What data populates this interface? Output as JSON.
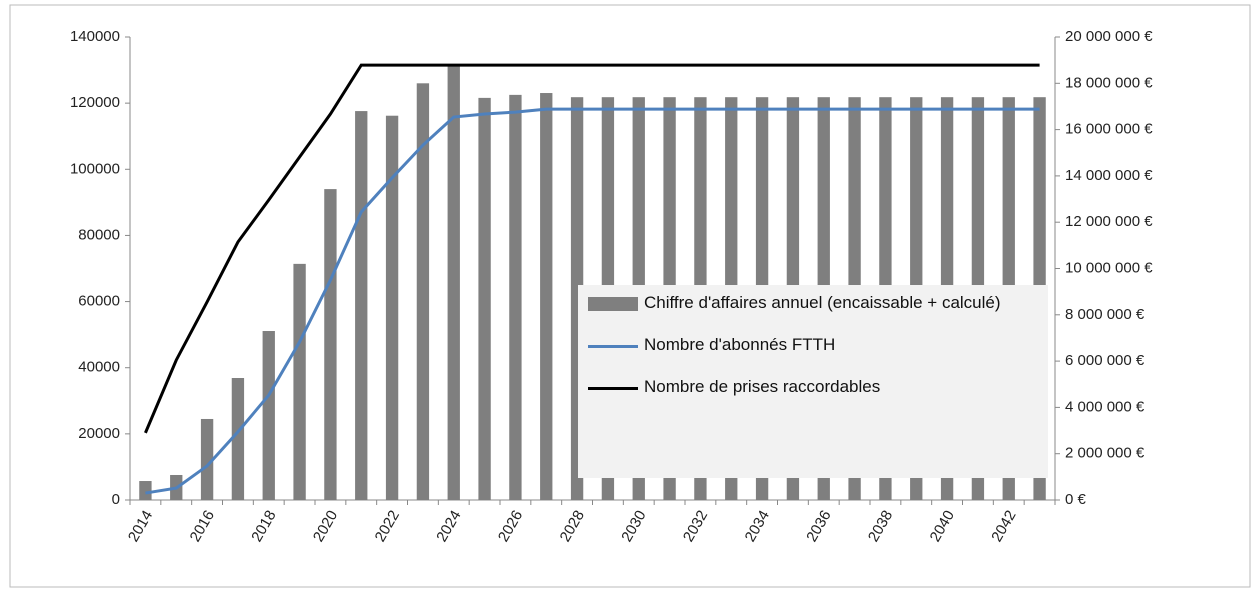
{
  "chart_data": {
    "type": "bar-line",
    "categories": [
      "2014",
      null,
      "2016",
      null,
      "2018",
      null,
      "2020",
      null,
      "2022",
      null,
      "2024",
      null,
      "2026",
      null,
      "2028",
      null,
      "2030",
      null,
      "2032",
      null,
      "2034",
      null,
      "2036",
      null,
      "2038",
      null,
      "2040",
      null,
      "2042",
      null
    ],
    "series": [
      {
        "name": "Chiffre d'affaires annuel (encaissable + calculé)",
        "type": "bar",
        "axis": "y2",
        "color": "#7f7f7f",
        "values": [
          820000,
          1080000,
          3500000,
          5270000,
          7300000,
          10200000,
          13430000,
          16800000,
          16600000,
          18000000,
          18830000,
          17370000,
          17500000,
          17580000,
          17400000,
          17400000,
          17400000,
          17400000,
          17400000,
          17400000,
          17400000,
          17400000,
          17400000,
          17400000,
          17400000,
          17400000,
          17400000,
          17400000,
          17400000,
          17400000
        ]
      },
      {
        "name": "Nombre d'abonnés FTTH",
        "type": "line",
        "axis": "y",
        "color": "#4f81bd",
        "values": [
          2100,
          3600,
          10300,
          20600,
          31700,
          47800,
          66500,
          87100,
          97400,
          107300,
          115800,
          116700,
          117300,
          118200,
          118200,
          118200,
          118200,
          118200,
          118200,
          118200,
          118200,
          118200,
          118200,
          118200,
          118200,
          118200,
          118200,
          118200,
          118200,
          118200
        ]
      },
      {
        "name": "Nombre de prises raccordables",
        "type": "line",
        "axis": "y",
        "color": "#000000",
        "values": [
          20300,
          42300,
          59900,
          78000,
          90700,
          103700,
          116700,
          131500,
          131500,
          131500,
          131500,
          131500,
          131500,
          131500,
          131500,
          131500,
          131500,
          131500,
          131500,
          131500,
          131500,
          131500,
          131500,
          131500,
          131500,
          131500,
          131500,
          131500,
          131500,
          131500
        ]
      }
    ],
    "ylim": [
      0,
      140000
    ],
    "yticks": [
      0,
      20000,
      40000,
      60000,
      80000,
      100000,
      120000,
      140000
    ],
    "y2lim": [
      0,
      20000000
    ],
    "y2ticks": [
      {
        "value": 0,
        "label": "0 €"
      },
      {
        "value": 2000000,
        "label": "2 000 000 €"
      },
      {
        "value": 4000000,
        "label": "4 000 000 €"
      },
      {
        "value": 6000000,
        "label": "6 000 000 €"
      },
      {
        "value": 8000000,
        "label": "8 000 000 €"
      },
      {
        "value": 10000000,
        "label": "10 000 000 €"
      },
      {
        "value": 12000000,
        "label": "12 000 000 €"
      },
      {
        "value": 14000000,
        "label": "14 000 000 €"
      },
      {
        "value": 16000000,
        "label": "16 000 000 €"
      },
      {
        "value": 18000000,
        "label": "18 000 000 €"
      },
      {
        "value": 20000000,
        "label": "20 000 000 €"
      }
    ],
    "legend": "right",
    "grid": false
  }
}
